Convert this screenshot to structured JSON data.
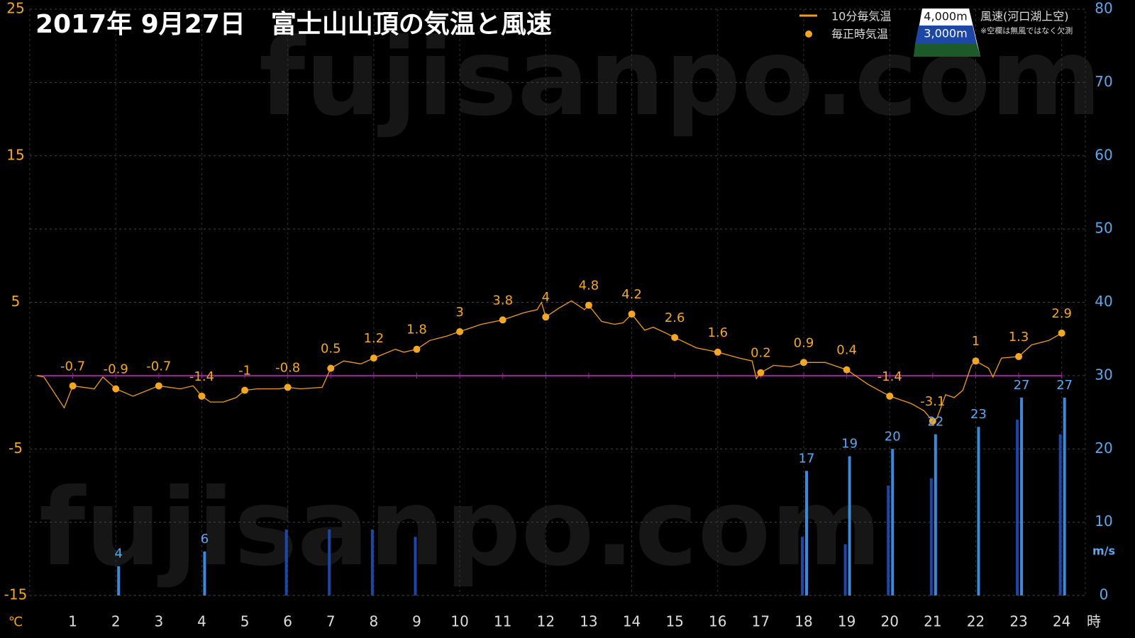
{
  "chart_data": {
    "type": "combo",
    "title": "2017年  9月27日　富士山山頂の気温と風速",
    "watermark": "fujisanpo.com",
    "x_label": "時",
    "y_label": "℃",
    "y2_label": "m/s",
    "legend_title": "風速(河口湖上空)",
    "legend_note": "※空欄は無風ではなく欠測",
    "xlim": [
      0,
      24.55
    ],
    "xticks": [
      1,
      2,
      3,
      4,
      5,
      6,
      7,
      8,
      9,
      10,
      11,
      12,
      13,
      14,
      15,
      16,
      17,
      18,
      19,
      20,
      21,
      22,
      23,
      24
    ],
    "ylim": [
      -15,
      25
    ],
    "yticks": [
      -15,
      -5,
      5,
      15,
      25
    ],
    "y2lim": [
      0,
      80
    ],
    "y2ticks": [
      0,
      10,
      20,
      30,
      40,
      50,
      60,
      70,
      80
    ],
    "grid": true,
    "series": [
      {
        "name": "10分毎気温",
        "type": "line",
        "color": "#f39c12",
        "x": [
          0.17,
          0.33,
          0.8,
          1,
          1.5,
          1.7,
          2,
          2.4,
          3,
          3.5,
          3.8,
          4,
          4.2,
          4.5,
          4.8,
          5,
          5.3,
          5.8,
          6,
          6.3,
          6.8,
          7,
          7.3,
          7.7,
          8,
          8.5,
          8.7,
          9,
          9.3,
          9.7,
          10,
          10.5,
          11,
          11.5,
          11.8,
          11.9,
          12,
          12.3,
          12.6,
          12.9,
          13,
          13.3,
          13.6,
          13.8,
          14,
          14.3,
          14.5,
          14.8,
          15,
          15.5,
          16,
          16.5,
          16.8,
          16.9,
          17,
          17.3,
          17.7,
          18,
          18.5,
          19,
          19.5,
          20,
          20.5,
          20.8,
          21,
          21.1,
          21.3,
          21.5,
          21.7,
          21.9,
          22,
          22.3,
          22.4,
          22.6,
          23,
          23.3,
          23.7,
          24
        ],
        "values": [
          0,
          -0.1,
          -2.2,
          -0.7,
          -0.9,
          -0.1,
          -0.9,
          -1.4,
          -0.7,
          -0.9,
          -0.7,
          -1.4,
          -1.8,
          -1.8,
          -1.5,
          -1.0,
          -0.9,
          -0.9,
          -0.8,
          -0.9,
          -0.8,
          0.5,
          1.0,
          0.8,
          1.2,
          1.8,
          1.6,
          1.8,
          2.4,
          2.7,
          3.0,
          3.5,
          3.8,
          4.3,
          4.5,
          5.0,
          4.0,
          4.6,
          5.1,
          4.5,
          4.8,
          3.7,
          3.5,
          3.6,
          4.2,
          3.1,
          3.3,
          2.9,
          2.6,
          1.9,
          1.6,
          1.2,
          1.0,
          -0.2,
          0.2,
          0.7,
          0.6,
          0.9,
          0.9,
          0.4,
          -0.6,
          -1.4,
          -1.9,
          -2.4,
          -3.1,
          -2.9,
          -1.3,
          -1.5,
          -1.0,
          0.7,
          1.0,
          0.5,
          -0.1,
          1.2,
          1.3,
          2.1,
          2.4,
          2.9
        ]
      },
      {
        "name": "毎正時気温",
        "type": "scatter",
        "color": "#f5a623",
        "show_labels": true,
        "x": [
          1,
          2,
          3,
          4,
          5,
          6,
          7,
          8,
          9,
          10,
          11,
          12,
          13,
          14,
          15,
          16,
          17,
          18,
          19,
          20,
          21,
          22,
          23,
          24
        ],
        "values": [
          -0.7,
          -0.9,
          -0.7,
          -1.4,
          -1,
          -0.8,
          0.5,
          1.2,
          1.8,
          3,
          3.8,
          4,
          4.8,
          4.2,
          2.6,
          1.6,
          0.2,
          0.9,
          0.4,
          -1.4,
          -3.1,
          1,
          1.3,
          2.9
        ]
      },
      {
        "name": "4,000m",
        "type": "bar",
        "axis": "y2",
        "color": "#1c47a6",
        "show_labels": false,
        "x": [
          6,
          7,
          8,
          9,
          18,
          19,
          20,
          21,
          23,
          24
        ],
        "values": [
          9,
          9,
          9,
          8,
          8,
          7,
          15,
          16,
          24,
          22
        ]
      },
      {
        "name": "3,000m",
        "type": "bar",
        "axis": "y2",
        "color": "#3d88da",
        "show_labels": true,
        "x": [
          2,
          4,
          18,
          19,
          20,
          21,
          22,
          23,
          24
        ],
        "values": [
          4,
          6,
          17,
          19,
          20,
          22,
          23,
          27,
          27
        ]
      }
    ]
  }
}
